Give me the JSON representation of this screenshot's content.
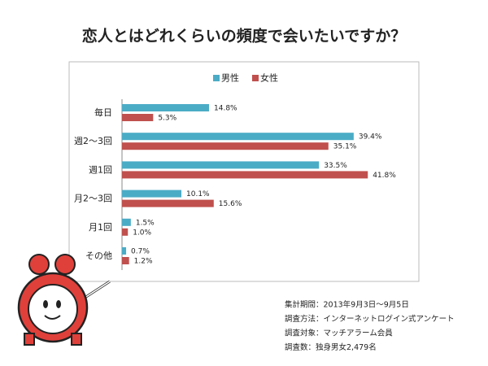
{
  "chart_data": {
    "type": "bar",
    "orientation": "horizontal",
    "title": "恋人とはどれくらいの頻度で会いたいですか？",
    "categories": [
      "毎日",
      "週2～3回",
      "週1回",
      "月2～3回",
      "月1回",
      "その他"
    ],
    "series": [
      {
        "name": "男性",
        "color": "#4bacc6",
        "values": [
          14.8,
          39.4,
          33.5,
          10.1,
          1.5,
          0.7
        ],
        "value_labels": [
          "14.8%",
          "39.4%",
          "33.5%",
          "10.1%",
          "1.5%",
          "0.7%"
        ]
      },
      {
        "name": "女性",
        "color": "#c0504d",
        "values": [
          5.3,
          35.1,
          41.8,
          15.6,
          1.0,
          1.2
        ],
        "value_labels": [
          "5.3%",
          "35.1%",
          "41.8%",
          "15.6%",
          "1.0%",
          "1.2%"
        ]
      }
    ],
    "notes": [
      "集計期間：2013年9月3日～9月5日",
      "調査方法：インターネットログイン式アンケート",
      "調査対象：マッチアラーム会員",
      "調査数：独身男女2,479名"
    ]
  }
}
